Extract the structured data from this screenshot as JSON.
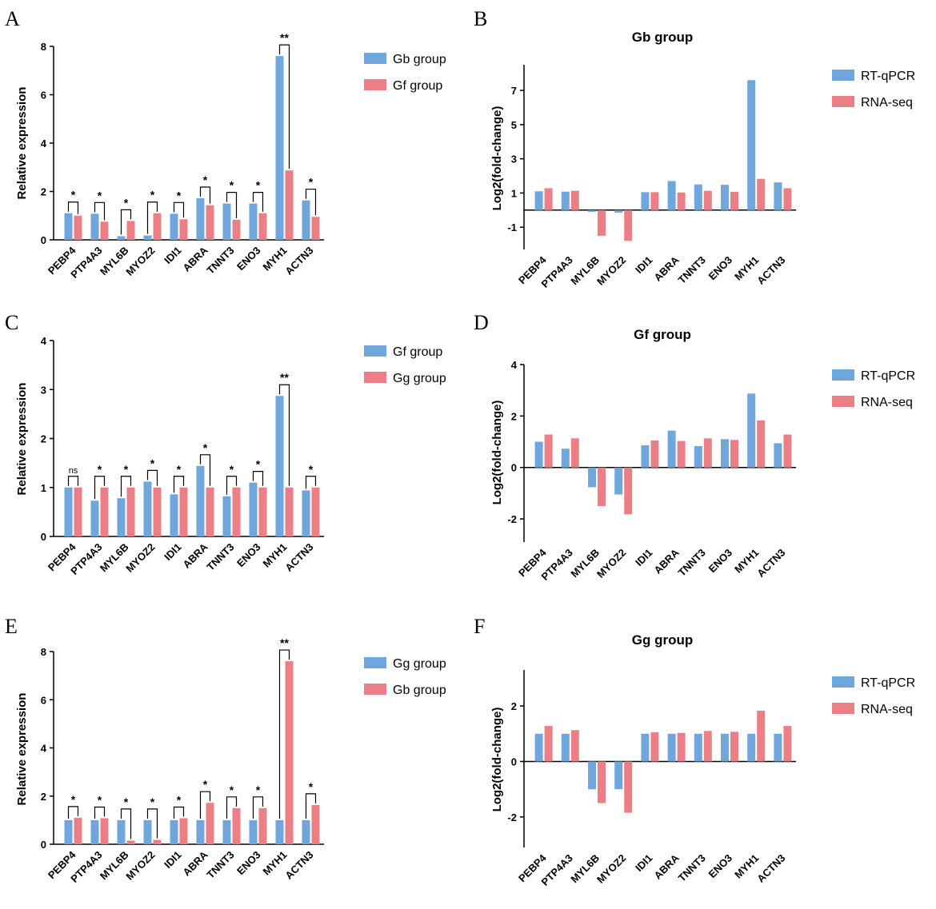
{
  "colors": {
    "blue": "#6fa6dc",
    "red": "#ec7f86",
    "axis": "#000000"
  },
  "chart_data": [
    {
      "id": "A",
      "panel_label": "A",
      "type": "bar",
      "title": "",
      "ylabel": "Relative expression",
      "xlabel": "",
      "ylim": [
        0,
        8
      ],
      "yticks": [
        0,
        2,
        4,
        6,
        8
      ],
      "categories": [
        "PEBP4",
        "PTP4A3",
        "MYL6B",
        "MYOZ2",
        "IDI1",
        "ABRA",
        "TNNT3",
        "ENO3",
        "MYH1",
        "ACTN3"
      ],
      "series": [
        {
          "name": "Gb group",
          "color": "#6fa6dc",
          "values": [
            1.1,
            1.08,
            0.15,
            0.18,
            1.08,
            1.72,
            1.5,
            1.5,
            7.6,
            1.63
          ]
        },
        {
          "name": "Gf group",
          "color": "#ec7f86",
          "values": [
            1.0,
            0.75,
            0.78,
            1.1,
            0.85,
            1.43,
            0.83,
            1.1,
            2.87,
            0.95
          ]
        }
      ],
      "significance": [
        "*",
        "*",
        "*",
        "*",
        "*",
        "*",
        "*",
        "*",
        "**",
        "*"
      ],
      "legend": [
        "Gb group",
        "Gf group"
      ]
    },
    {
      "id": "B",
      "panel_label": "B",
      "type": "bar",
      "title": "Gb group",
      "ylabel": "Log2(fold-change)",
      "xlabel": "",
      "ylim": [
        -2.3,
        8.5
      ],
      "yticks": [
        -1,
        1,
        3,
        5,
        7
      ],
      "categories": [
        "PEBP4",
        "PTP4A3",
        "MYL6B",
        "MYOZ2",
        "IDI1",
        "ABRA",
        "TNNT3",
        "ENO3",
        "MYH1",
        "ACTN3"
      ],
      "series": [
        {
          "name": "RT-qPCR",
          "color": "#6fa6dc",
          "values": [
            1.1,
            1.08,
            -0.1,
            -0.15,
            1.05,
            1.7,
            1.5,
            1.48,
            7.6,
            1.62
          ]
        },
        {
          "name": "RNA-seq",
          "color": "#ec7f86",
          "values": [
            1.28,
            1.13,
            -1.5,
            -1.8,
            1.05,
            1.03,
            1.13,
            1.07,
            1.83,
            1.28
          ]
        }
      ],
      "legend": [
        "RT-qPCR",
        "RNA-seq"
      ]
    },
    {
      "id": "C",
      "panel_label": "C",
      "type": "bar",
      "title": "",
      "ylabel": "Relative expression",
      "xlabel": "",
      "ylim": [
        0,
        4
      ],
      "yticks": [
        0,
        1,
        2,
        3,
        4
      ],
      "categories": [
        "PEBP4",
        "PTP4A3",
        "MYL6B",
        "MYOZ2",
        "IDI1",
        "ABRA",
        "TNNT3",
        "ENO3",
        "MYH1",
        "ACTN3"
      ],
      "series": [
        {
          "name": "Gf group",
          "color": "#6fa6dc",
          "values": [
            1.0,
            0.73,
            0.78,
            1.12,
            0.86,
            1.44,
            0.82,
            1.1,
            2.87,
            0.94
          ]
        },
        {
          "name": "Gg group",
          "color": "#ec7f86",
          "values": [
            1.0,
            1.0,
            1.0,
            1.0,
            1.0,
            1.0,
            1.0,
            1.0,
            1.0,
            1.0
          ]
        }
      ],
      "significance": [
        "ns",
        "*",
        "*",
        "*",
        "*",
        "*",
        "*",
        "*",
        "**",
        "*"
      ],
      "legend": [
        "Gf group",
        "Gg group"
      ]
    },
    {
      "id": "D",
      "panel_label": "D",
      "type": "bar",
      "title": "Gf group",
      "ylabel": "Log2(fold-change)",
      "xlabel": "",
      "ylim": [
        -2.9,
        4
      ],
      "yticks": [
        -2,
        0,
        2,
        4
      ],
      "categories": [
        "PEBP4",
        "PTP4A3",
        "MYL6B",
        "MYOZ2",
        "IDI1",
        "ABRA",
        "TNNT3",
        "ENO3",
        "MYH1",
        "ACTN3"
      ],
      "series": [
        {
          "name": "RT-qPCR",
          "color": "#6fa6dc",
          "values": [
            1.0,
            0.73,
            -0.77,
            -1.05,
            0.86,
            1.43,
            0.83,
            1.1,
            2.87,
            0.94
          ]
        },
        {
          "name": "RNA-seq",
          "color": "#ec7f86",
          "values": [
            1.28,
            1.13,
            -1.5,
            -1.82,
            1.05,
            1.03,
            1.13,
            1.07,
            1.83,
            1.28
          ]
        }
      ],
      "legend": [
        "RT-qPCR",
        "RNA-seq"
      ]
    },
    {
      "id": "E",
      "panel_label": "E",
      "type": "bar",
      "title": "",
      "ylabel": "Relative expression",
      "xlabel": "",
      "ylim": [
        0,
        8
      ],
      "yticks": [
        0,
        2,
        4,
        6,
        8
      ],
      "categories": [
        "PEBP4",
        "PTP4A3",
        "MYL6B",
        "MYOZ2",
        "IDI1",
        "ABRA",
        "TNNT3",
        "ENO3",
        "MYH1",
        "ACTN3"
      ],
      "series": [
        {
          "name": "Gg group",
          "color": "#6fa6dc",
          "values": [
            1.0,
            1.0,
            1.0,
            1.0,
            1.0,
            1.0,
            1.0,
            1.0,
            1.0,
            1.0
          ]
        },
        {
          "name": "Gb group",
          "color": "#ec7f86",
          "values": [
            1.1,
            1.08,
            0.15,
            0.18,
            1.08,
            1.72,
            1.5,
            1.5,
            7.6,
            1.63
          ]
        }
      ],
      "significance": [
        "*",
        "*",
        "*",
        "*",
        "*",
        "*",
        "*",
        "*",
        "**",
        "*"
      ],
      "legend": [
        "Gg group",
        "Gb group"
      ]
    },
    {
      "id": "F",
      "panel_label": "F",
      "type": "bar",
      "title": "Gg group",
      "ylabel": "Log2(fold-change)",
      "xlabel": "",
      "ylim": [
        -3.1,
        3.3
      ],
      "yticks": [
        -2,
        0,
        2
      ],
      "categories": [
        "PEBP4",
        "PTP4A3",
        "MYL6B",
        "MYOZ2",
        "IDI1",
        "ABRA",
        "TNNT3",
        "ENO3",
        "MYH1",
        "ACTN3"
      ],
      "series": [
        {
          "name": "RT-qPCR",
          "color": "#6fa6dc",
          "values": [
            1.0,
            1.0,
            -1.0,
            -1.0,
            1.0,
            1.0,
            1.0,
            1.0,
            1.0,
            1.0
          ]
        },
        {
          "name": "RNA-seq",
          "color": "#ec7f86",
          "values": [
            1.28,
            1.13,
            -1.5,
            -1.85,
            1.05,
            1.03,
            1.1,
            1.07,
            1.83,
            1.28
          ]
        }
      ],
      "legend": [
        "RT-qPCR",
        "RNA-seq"
      ]
    }
  ]
}
